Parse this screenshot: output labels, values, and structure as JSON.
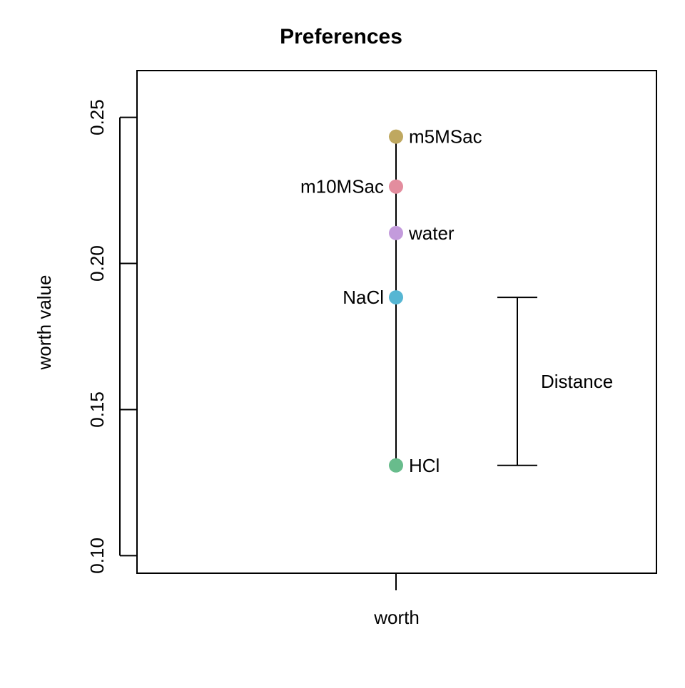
{
  "chart_data": {
    "type": "scatter",
    "title": "Preferences",
    "xlabel": "worth",
    "ylabel": "worth value",
    "ylim": [
      0.094,
      0.266
    ],
    "yticks": [
      "0.10",
      "0.15",
      "0.20",
      "0.25"
    ],
    "ytick_values": [
      0.1,
      0.15,
      0.2,
      0.25
    ],
    "grid": false,
    "points": [
      {
        "label": "m5MSac",
        "value": 0.2434,
        "color": "#BFA860",
        "label_side": "right"
      },
      {
        "label": "m10MSac",
        "value": 0.2263,
        "color": "#E38D9E",
        "label_side": "left"
      },
      {
        "label": "water",
        "value": 0.2104,
        "color": "#C39BDC",
        "label_side": "right"
      },
      {
        "label": "NaCl",
        "value": 0.1884,
        "color": "#56B6D3",
        "label_side": "left"
      },
      {
        "label": "HCl",
        "value": 0.1309,
        "color": "#68BC8C",
        "label_side": "right"
      }
    ],
    "annotation": {
      "label": "Distance",
      "from": 0.1884,
      "to": 0.1309
    }
  }
}
